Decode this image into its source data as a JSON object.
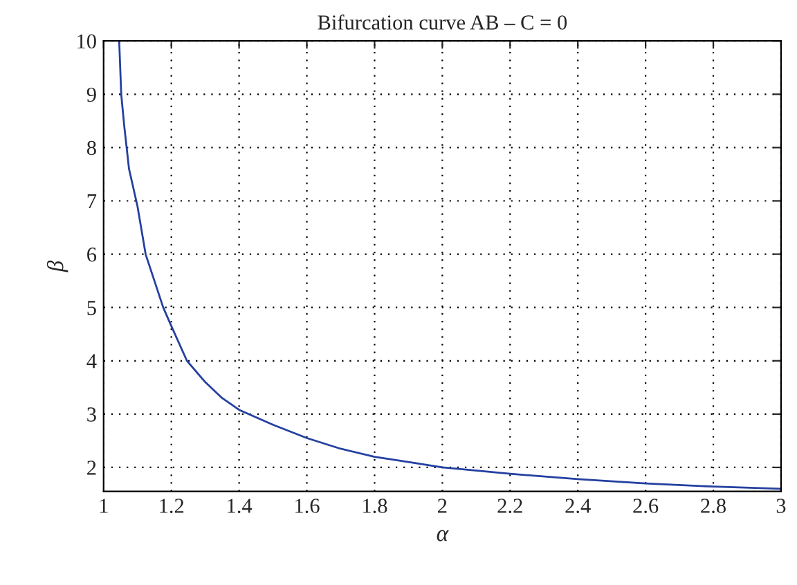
{
  "chart_data": {
    "type": "line",
    "title": "Bifurcation curve AB – C = 0",
    "xlabel": "α",
    "ylabel": "β",
    "x": [
      1.046,
      1.052,
      1.061,
      1.075,
      1.1,
      1.124,
      1.15,
      1.176,
      1.2,
      1.246,
      1.3,
      1.35,
      1.4,
      1.5,
      1.6,
      1.7,
      1.8,
      1.9,
      2.0,
      2.2,
      2.4,
      2.6,
      2.8,
      3.0
    ],
    "series": [
      {
        "color": "#2440a0",
        "values": [
          10,
          9,
          8.4,
          7.6,
          6.9,
          6,
          5.5,
          5,
          4.65,
          4,
          3.6,
          3.3,
          3.08,
          2.8,
          2.55,
          2.35,
          2.2,
          2.1,
          2.0,
          1.88,
          1.78,
          1.7,
          1.64,
          1.6
        ]
      }
    ],
    "xlim": [
      1,
      3
    ],
    "ylim": [
      1.55,
      10
    ],
    "xticks": [
      1,
      1.2,
      1.4,
      1.6,
      1.8,
      2,
      2.2,
      2.4,
      2.6,
      2.8,
      3
    ],
    "yticks": [
      2,
      3,
      4,
      5,
      6,
      7,
      8,
      9,
      10
    ],
    "grid": true,
    "marker": "none",
    "line_style": "solid"
  }
}
